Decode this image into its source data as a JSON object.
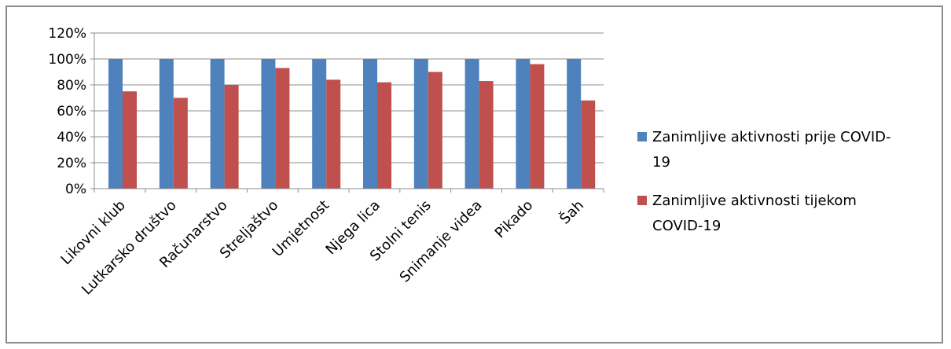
{
  "chart_data": {
    "type": "bar",
    "title": "",
    "xlabel": "",
    "ylabel": "",
    "ylim": [
      0,
      120
    ],
    "y_tick_step": 20,
    "y_tick_suffix": "%",
    "grid": true,
    "legend_position": "right",
    "categories": [
      "Likovni klub",
      "Lutkarsko društvo",
      "Računarstvo",
      "Streljaštvo",
      "Umjetnost",
      "Njega lica",
      "Stolni tenis",
      "Snimanje videa",
      "Pikado",
      "Šah"
    ],
    "series": [
      {
        "name": "Zanimljive aktivnosti prije COVID-19",
        "legend_lines": [
          "Zanimljive aktivnosti prije COVID-",
          "19"
        ],
        "color": "#4F81BD",
        "values": [
          100,
          100,
          100,
          100,
          100,
          100,
          100,
          100,
          100,
          100
        ]
      },
      {
        "name": "Zanimljive aktivnosti tijekom COVID-19",
        "legend_lines": [
          "Zanimljive aktivnosti tijekom",
          "COVID-19"
        ],
        "color": "#C0504D",
        "values": [
          75,
          70,
          80,
          93,
          84,
          82,
          90,
          83,
          96,
          68
        ]
      }
    ]
  }
}
